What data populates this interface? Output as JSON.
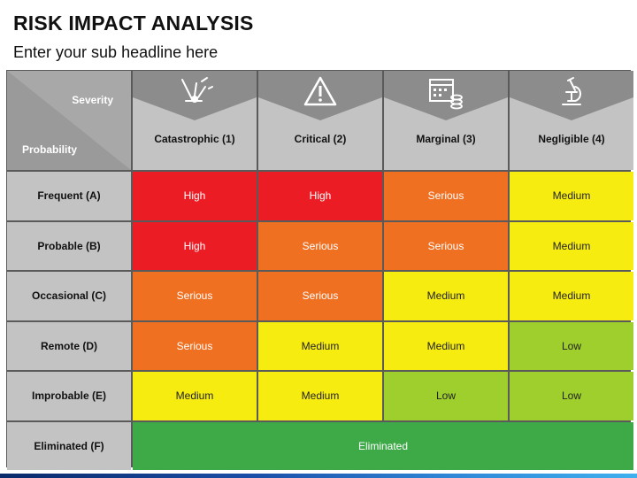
{
  "header": {
    "title": "RISK IMPACT ANALYSIS",
    "subtitle": "Enter your sub headline here"
  },
  "matrix": {
    "corner": {
      "severity_label": "Severity",
      "probability_label": "Probability"
    },
    "columns": [
      {
        "label": "Catastrophic (1)",
        "icon": "explosion-icon"
      },
      {
        "label": "Critical (2)",
        "icon": "warning-triangle-icon"
      },
      {
        "label": "Marginal (3)",
        "icon": "calendar-coins-icon"
      },
      {
        "label": "Negligible (4)",
        "icon": "microscope-icon"
      }
    ],
    "rows": [
      {
        "label": "Frequent (A)",
        "cells": [
          "High",
          "High",
          "Serious",
          "Medium"
        ]
      },
      {
        "label": "Probable (B)",
        "cells": [
          "High",
          "Serious",
          "Serious",
          "Medium"
        ]
      },
      {
        "label": "Occasional (C)",
        "cells": [
          "Serious",
          "Serious",
          "Medium",
          "Medium"
        ]
      },
      {
        "label": "Remote (D)",
        "cells": [
          "Serious",
          "Medium",
          "Medium",
          "Low"
        ]
      },
      {
        "label": "Improbable (E)",
        "cells": [
          "Medium",
          "Medium",
          "Low",
          "Low"
        ]
      },
      {
        "label": "Eliminated (F)",
        "merged": "Eliminated"
      }
    ]
  },
  "colors": {
    "High": "#ec1c24",
    "Serious": "#f07022",
    "Medium": "#f7ec10",
    "Low": "#9ecf2c",
    "Eliminated": "#3daa47",
    "header_gray": "#c3c3c3",
    "band_gray": "#a6a6a6"
  }
}
